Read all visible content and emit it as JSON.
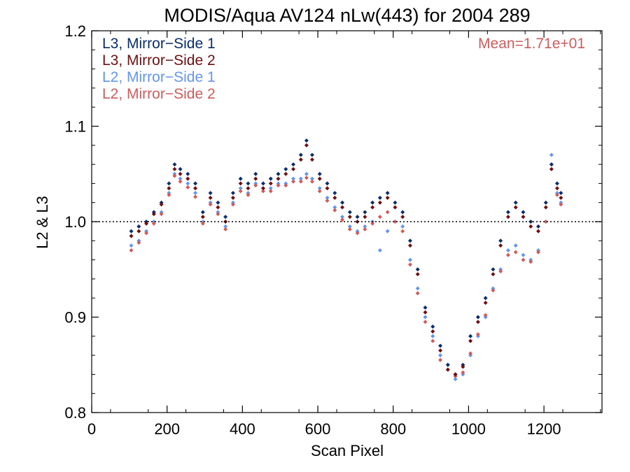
{
  "chart_data": {
    "type": "scatter",
    "title": "MODIS/Aqua AV124 nLw(443) for 2004 289",
    "xlabel": "Scan Pixel",
    "ylabel": "L2 & L3",
    "xlim": [
      0,
      1354
    ],
    "ylim": [
      0.8,
      1.2
    ],
    "xticks": [
      0,
      200,
      400,
      600,
      800,
      1000,
      1200
    ],
    "xtick_labels": [
      "0",
      "200",
      "400",
      "600",
      "800",
      "1000",
      "1200"
    ],
    "yticks": [
      0.8,
      0.9,
      1.0,
      1.1,
      1.2
    ],
    "ytick_labels": [
      "0.8",
      "0.9",
      "1.0",
      "1.1",
      "1.2"
    ],
    "reference_line": 1.0,
    "annotation": "Mean=1.71e+01",
    "legend_position": "top-left",
    "grid": false,
    "series": [
      {
        "name": "L3, Mirror−Side 1",
        "color": "#0b2d6b",
        "points": [
          [
            105,
            0.99
          ],
          [
            125,
            0.995
          ],
          [
            145,
            1.0
          ],
          [
            165,
            1.01
          ],
          [
            185,
            1.02
          ],
          [
            205,
            1.04
          ],
          [
            220,
            1.06
          ],
          [
            235,
            1.055
          ],
          [
            255,
            1.05
          ],
          [
            275,
            1.04
          ],
          [
            295,
            1.01
          ],
          [
            315,
            1.03
          ],
          [
            335,
            1.02
          ],
          [
            355,
            1.005
          ],
          [
            375,
            1.03
          ],
          [
            395,
            1.045
          ],
          [
            415,
            1.04
          ],
          [
            435,
            1.05
          ],
          [
            455,
            1.04
          ],
          [
            475,
            1.045
          ],
          [
            495,
            1.05
          ],
          [
            515,
            1.055
          ],
          [
            535,
            1.06
          ],
          [
            555,
            1.07
          ],
          [
            570,
            1.085
          ],
          [
            585,
            1.07
          ],
          [
            605,
            1.05
          ],
          [
            625,
            1.04
          ],
          [
            645,
            1.03
          ],
          [
            665,
            1.02
          ],
          [
            685,
            1.01
          ],
          [
            705,
            1.005
          ],
          [
            725,
            1.01
          ],
          [
            745,
            1.02
          ],
          [
            765,
            1.025
          ],
          [
            785,
            1.03
          ],
          [
            805,
            1.02
          ],
          [
            825,
            1.01
          ],
          [
            845,
            0.98
          ],
          [
            865,
            0.95
          ],
          [
            885,
            0.91
          ],
          [
            905,
            0.89
          ],
          [
            925,
            0.87
          ],
          [
            945,
            0.85
          ],
          [
            965,
            0.84
          ],
          [
            985,
            0.85
          ],
          [
            1005,
            0.88
          ],
          [
            1025,
            0.9
          ],
          [
            1045,
            0.92
          ],
          [
            1065,
            0.95
          ],
          [
            1085,
            0.98
          ],
          [
            1105,
            1.01
          ],
          [
            1125,
            1.02
          ],
          [
            1145,
            1.01
          ],
          [
            1165,
            1.0
          ],
          [
            1185,
            0.995
          ],
          [
            1205,
            1.02
          ],
          [
            1220,
            1.06
          ],
          [
            1235,
            1.04
          ],
          [
            1245,
            1.03
          ]
        ]
      },
      {
        "name": "L3, Mirror−Side 2",
        "color": "#6e0f12",
        "points": [
          [
            105,
            0.985
          ],
          [
            125,
            0.99
          ],
          [
            145,
            0.998
          ],
          [
            165,
            1.008
          ],
          [
            185,
            1.018
          ],
          [
            205,
            1.035
          ],
          [
            220,
            1.055
          ],
          [
            235,
            1.05
          ],
          [
            255,
            1.045
          ],
          [
            275,
            1.035
          ],
          [
            295,
            1.005
          ],
          [
            315,
            1.025
          ],
          [
            335,
            1.015
          ],
          [
            355,
            1.0
          ],
          [
            375,
            1.025
          ],
          [
            395,
            1.04
          ],
          [
            415,
            1.035
          ],
          [
            435,
            1.045
          ],
          [
            455,
            1.035
          ],
          [
            475,
            1.04
          ],
          [
            495,
            1.045
          ],
          [
            515,
            1.05
          ],
          [
            535,
            1.055
          ],
          [
            555,
            1.065
          ],
          [
            570,
            1.08
          ],
          [
            585,
            1.065
          ],
          [
            605,
            1.045
          ],
          [
            625,
            1.035
          ],
          [
            645,
            1.025
          ],
          [
            665,
            1.015
          ],
          [
            685,
            1.005
          ],
          [
            705,
            1.0
          ],
          [
            725,
            1.005
          ],
          [
            745,
            1.015
          ],
          [
            765,
            1.02
          ],
          [
            785,
            1.025
          ],
          [
            805,
            1.015
          ],
          [
            825,
            1.005
          ],
          [
            845,
            0.975
          ],
          [
            865,
            0.945
          ],
          [
            885,
            0.905
          ],
          [
            905,
            0.885
          ],
          [
            925,
            0.865
          ],
          [
            945,
            0.845
          ],
          [
            965,
            0.84
          ],
          [
            985,
            0.848
          ],
          [
            1005,
            0.875
          ],
          [
            1025,
            0.895
          ],
          [
            1045,
            0.915
          ],
          [
            1065,
            0.945
          ],
          [
            1085,
            0.975
          ],
          [
            1105,
            1.005
          ],
          [
            1125,
            1.015
          ],
          [
            1145,
            1.005
          ],
          [
            1165,
            0.995
          ],
          [
            1185,
            0.99
          ],
          [
            1205,
            1.015
          ],
          [
            1220,
            1.055
          ],
          [
            1235,
            1.035
          ],
          [
            1245,
            1.025
          ]
        ]
      },
      {
        "name": "L2, Mirror−Side 1",
        "color": "#6495ed",
        "points": [
          [
            105,
            0.975
          ],
          [
            125,
            0.98
          ],
          [
            145,
            0.99
          ],
          [
            165,
            1.0
          ],
          [
            185,
            1.01
          ],
          [
            205,
            1.03
          ],
          [
            220,
            1.05
          ],
          [
            235,
            1.045
          ],
          [
            255,
            1.04
          ],
          [
            275,
            1.03
          ],
          [
            295,
            1.0
          ],
          [
            315,
            1.02
          ],
          [
            335,
            1.01
          ],
          [
            355,
            0.995
          ],
          [
            375,
            1.02
          ],
          [
            395,
            1.035
          ],
          [
            415,
            1.03
          ],
          [
            435,
            1.04
          ],
          [
            455,
            1.035
          ],
          [
            475,
            1.035
          ],
          [
            495,
            1.04
          ],
          [
            515,
            1.04
          ],
          [
            535,
            1.045
          ],
          [
            555,
            1.045
          ],
          [
            570,
            1.05
          ],
          [
            585,
            1.045
          ],
          [
            605,
            1.035
          ],
          [
            625,
            1.025
          ],
          [
            645,
            1.015
          ],
          [
            665,
            1.005
          ],
          [
            685,
            0.995
          ],
          [
            705,
            0.99
          ],
          [
            725,
            0.995
          ],
          [
            745,
            1.0
          ],
          [
            765,
            0.97
          ],
          [
            785,
            0.99
          ],
          [
            805,
            1.0
          ],
          [
            825,
            0.995
          ],
          [
            845,
            0.96
          ],
          [
            865,
            0.93
          ],
          [
            885,
            0.9
          ],
          [
            905,
            0.88
          ],
          [
            925,
            0.86
          ],
          [
            945,
            0.85
          ],
          [
            965,
            0.835
          ],
          [
            985,
            0.84
          ],
          [
            1005,
            0.86
          ],
          [
            1025,
            0.88
          ],
          [
            1045,
            0.9
          ],
          [
            1065,
            0.93
          ],
          [
            1085,
            0.95
          ],
          [
            1105,
            0.97
          ],
          [
            1125,
            0.975
          ],
          [
            1145,
            0.965
          ],
          [
            1165,
            0.96
          ],
          [
            1185,
            0.97
          ],
          [
            1205,
            1.0
          ],
          [
            1220,
            1.07
          ],
          [
            1235,
            1.03
          ],
          [
            1245,
            1.02
          ]
        ]
      },
      {
        "name": "L2, Mirror−Side 2",
        "color": "#cd5c5c",
        "points": [
          [
            105,
            0.97
          ],
          [
            125,
            0.978
          ],
          [
            145,
            0.988
          ],
          [
            165,
            0.998
          ],
          [
            185,
            1.008
          ],
          [
            205,
            1.028
          ],
          [
            220,
            1.048
          ],
          [
            235,
            1.042
          ],
          [
            255,
            1.036
          ],
          [
            275,
            1.026
          ],
          [
            295,
            0.998
          ],
          [
            315,
            1.018
          ],
          [
            335,
            1.008
          ],
          [
            355,
            0.992
          ],
          [
            375,
            1.018
          ],
          [
            395,
            1.032
          ],
          [
            415,
            1.028
          ],
          [
            435,
            1.038
          ],
          [
            455,
            1.032
          ],
          [
            475,
            1.032
          ],
          [
            495,
            1.038
          ],
          [
            515,
            1.038
          ],
          [
            535,
            1.042
          ],
          [
            555,
            1.042
          ],
          [
            570,
            1.046
          ],
          [
            585,
            1.042
          ],
          [
            605,
            1.032
          ],
          [
            625,
            1.022
          ],
          [
            645,
            1.012
          ],
          [
            665,
            1.002
          ],
          [
            685,
            0.992
          ],
          [
            705,
            0.988
          ],
          [
            725,
            0.992
          ],
          [
            745,
            0.998
          ],
          [
            765,
            1.005
          ],
          [
            785,
            1.01
          ],
          [
            805,
            1.0
          ],
          [
            825,
            0.99
          ],
          [
            845,
            0.955
          ],
          [
            865,
            0.925
          ],
          [
            885,
            0.895
          ],
          [
            905,
            0.875
          ],
          [
            925,
            0.855
          ],
          [
            945,
            0.845
          ],
          [
            965,
            0.838
          ],
          [
            985,
            0.842
          ],
          [
            1005,
            0.862
          ],
          [
            1025,
            0.882
          ],
          [
            1045,
            0.902
          ],
          [
            1065,
            0.928
          ],
          [
            1085,
            0.948
          ],
          [
            1105,
            0.965
          ],
          [
            1125,
            0.968
          ],
          [
            1145,
            0.96
          ],
          [
            1165,
            0.958
          ],
          [
            1185,
            0.968
          ],
          [
            1205,
            1.0
          ],
          [
            1220,
            1.06
          ],
          [
            1235,
            1.028
          ],
          [
            1245,
            1.018
          ]
        ]
      }
    ]
  }
}
